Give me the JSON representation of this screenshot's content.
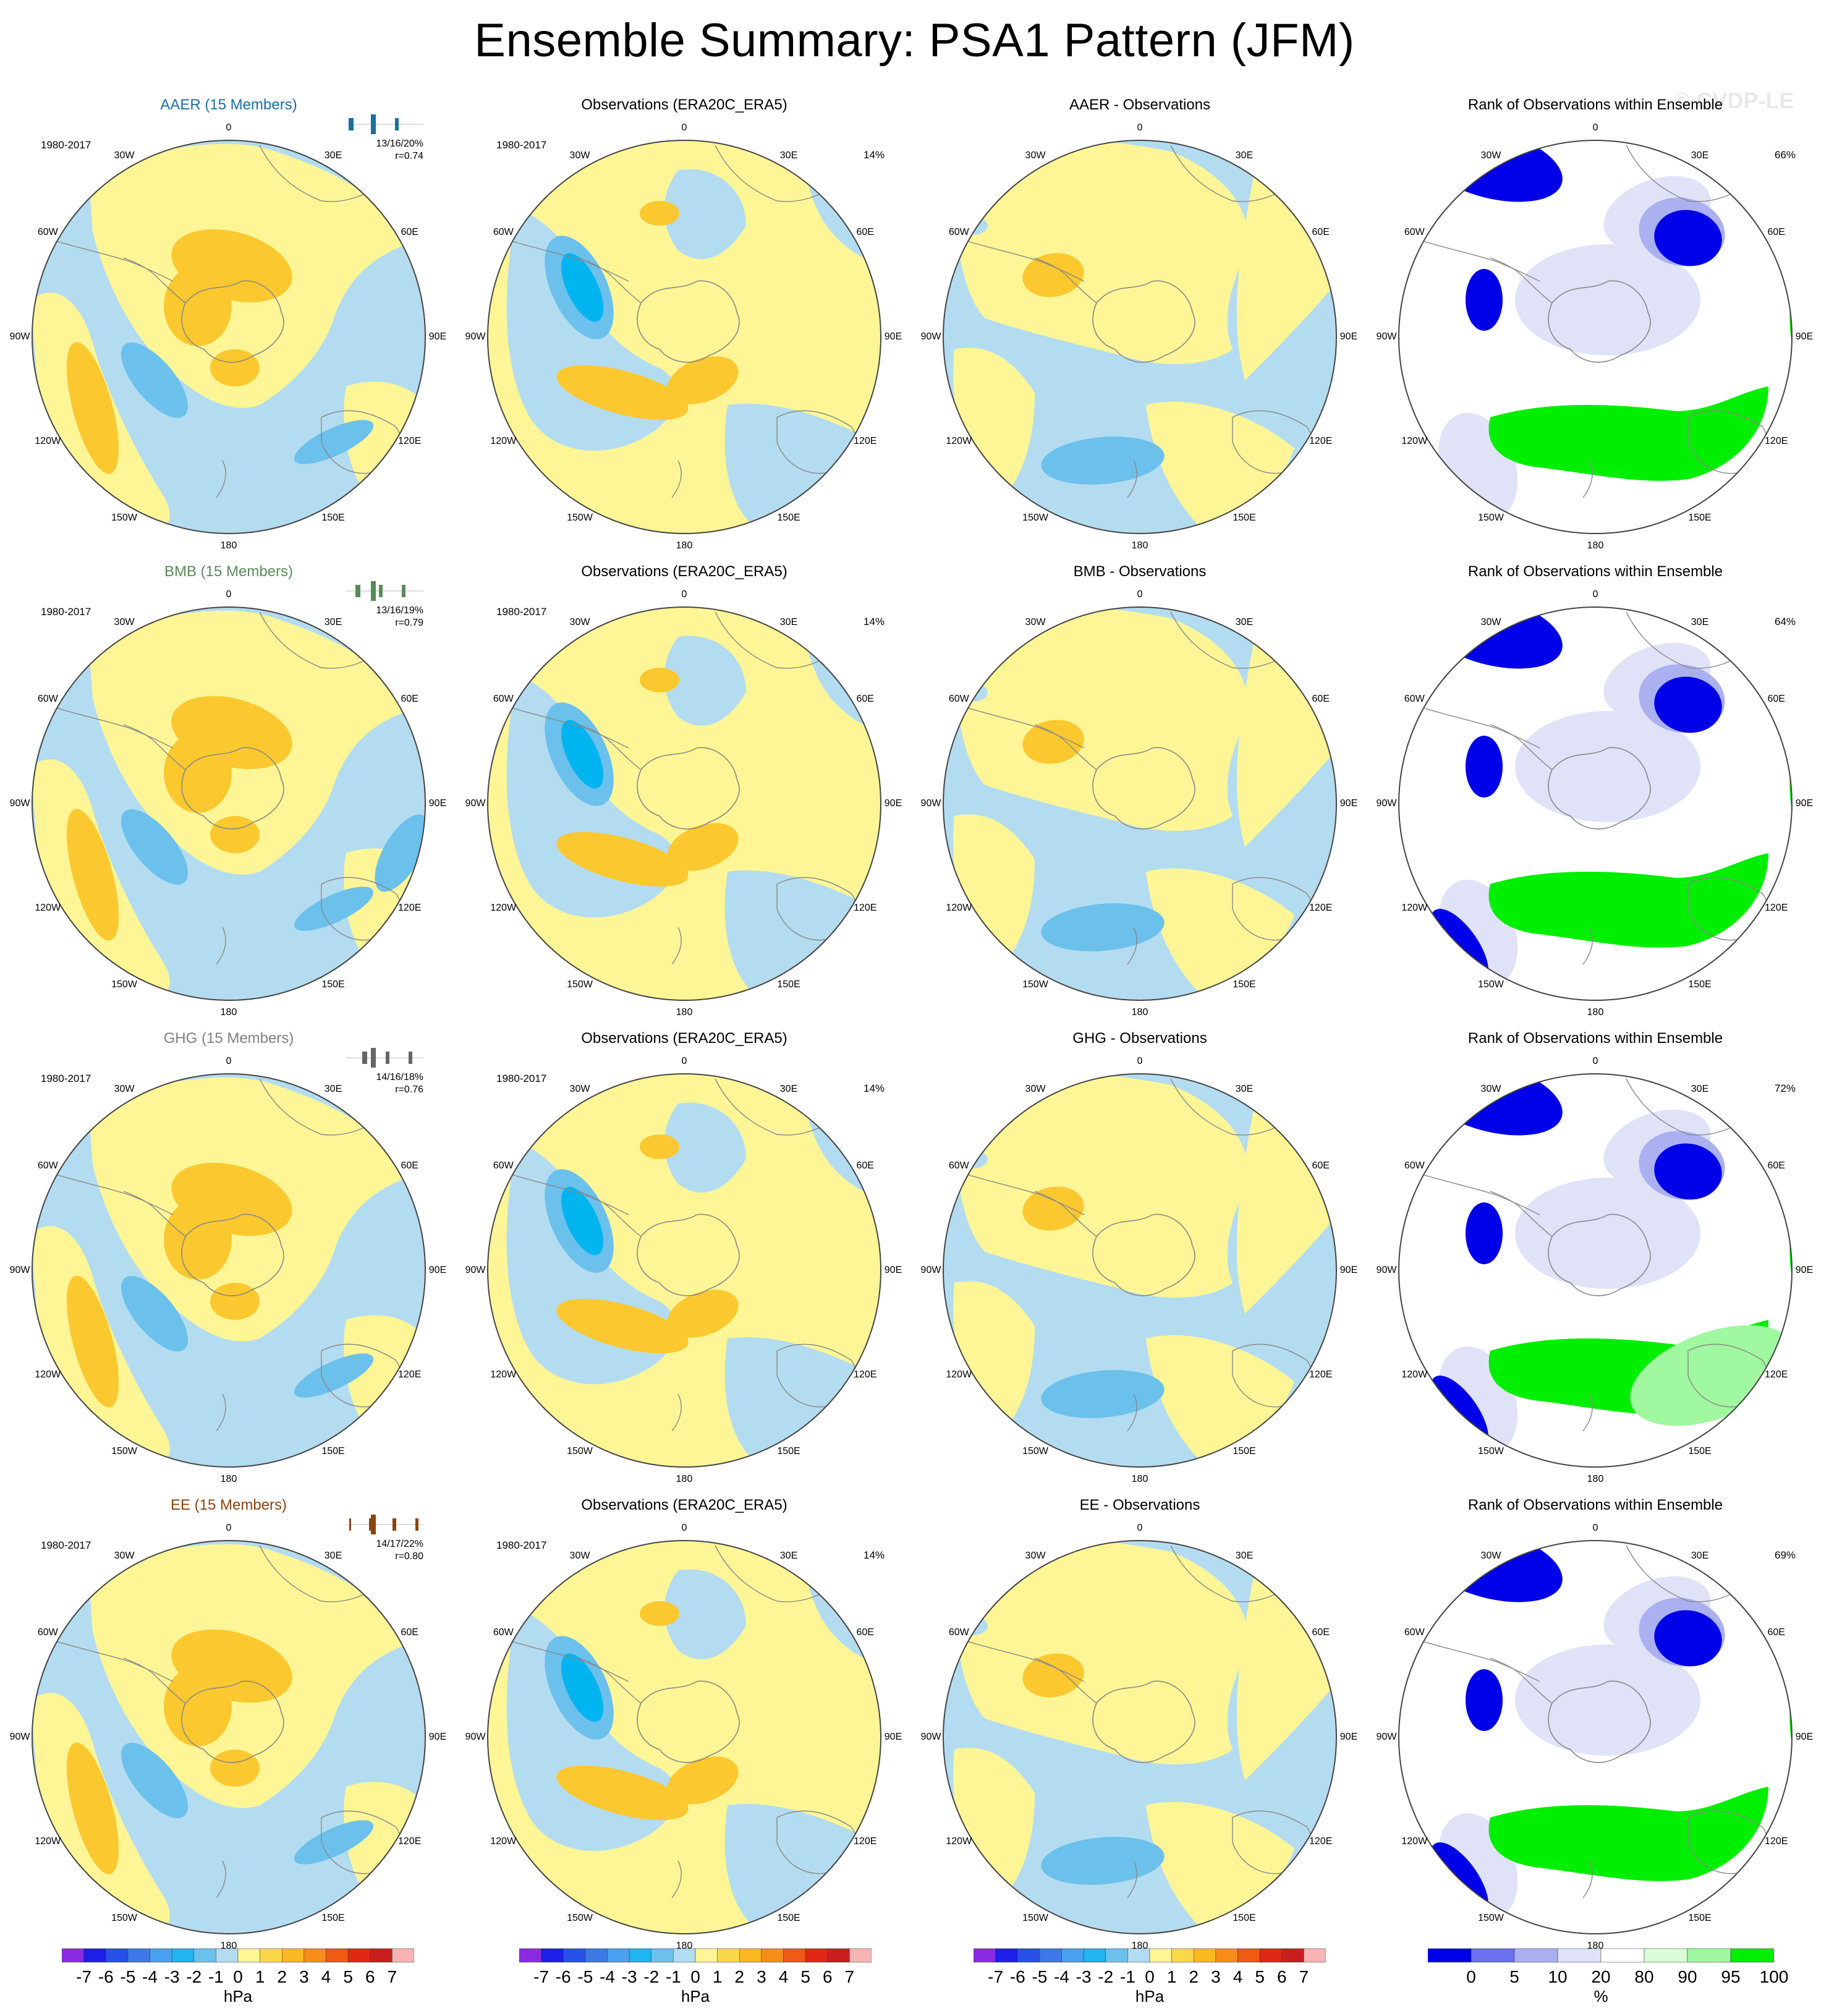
{
  "figure_title": "Ensemble Summary: PSA1 Pattern (JFM)",
  "watermark": "© CVDP-LE",
  "lon_labels": {
    "top": "0",
    "r30": "30E",
    "r60": "60E",
    "r90": "90E",
    "r120": "120E",
    "r150": "150E",
    "bottom": "180",
    "l150": "150W",
    "l120": "120W",
    "l90": "90W",
    "l60": "60W",
    "l30": "30W"
  },
  "colors": {
    "light_blue": "#b4dcf0",
    "mid_blue": "#6cc0ec",
    "deep_cyan": "#00b4f0",
    "light_yellow": "#fef696",
    "orange_yellow": "#fcc830",
    "rank_blue": "#0000e8",
    "rank_lavender": "#aab0f0",
    "rank_pale": "#e0e2f8",
    "rank_green": "#00ee00",
    "rank_lightgreen": "#a0f8a0",
    "rank_palegreen": "#d8fcd8",
    "coast": "#888888"
  },
  "rows": [
    {
      "ensemble": {
        "title": "AAER (15 Members)",
        "title_color": "#1a6fa0",
        "period": "1980-2017",
        "stats_line1": "13/16/20%",
        "stats_line2": "r=0.74",
        "spark_color": "#1a6fa0"
      },
      "obs": {
        "title": "Observations (ERA20C_ERA5)",
        "period": "1980-2017",
        "pct": "14%"
      },
      "diff": {
        "title": "AAER - Observations"
      },
      "rank": {
        "title": "Rank of Observations within Ensemble",
        "pct": "66%"
      }
    },
    {
      "ensemble": {
        "title": "BMB (15 Members)",
        "title_color": "#5a8a5a",
        "period": "1980-2017",
        "stats_line1": "13/16/19%",
        "stats_line2": "r=0.79",
        "spark_color": "#5a8a5a"
      },
      "obs": {
        "title": "Observations (ERA20C_ERA5)",
        "period": "1980-2017",
        "pct": "14%"
      },
      "diff": {
        "title": "BMB - Observations"
      },
      "rank": {
        "title": "Rank of Observations within Ensemble",
        "pct": "64%"
      }
    },
    {
      "ensemble": {
        "title": "GHG (15 Members)",
        "title_color": "#808080",
        "period": "1980-2017",
        "stats_line1": "14/16/18%",
        "stats_line2": "r=0.76",
        "spark_color": "#666666"
      },
      "obs": {
        "title": "Observations (ERA20C_ERA5)",
        "period": "1980-2017",
        "pct": "14%"
      },
      "diff": {
        "title": "GHG - Observations"
      },
      "rank": {
        "title": "Rank of Observations within Ensemble",
        "pct": "72%"
      }
    },
    {
      "ensemble": {
        "title": "EE (15 Members)",
        "title_color": "#8b4513",
        "period": "1980-2017",
        "stats_line1": "14/17/22%",
        "stats_line2": "r=0.80",
        "spark_color": "#8b4513"
      },
      "obs": {
        "title": "Observations (ERA20C_ERA5)",
        "period": "1980-2017",
        "pct": "14%"
      },
      "diff": {
        "title": "EE - Observations"
      },
      "rank": {
        "title": "Rank of Observations within Ensemble",
        "pct": "69%"
      }
    }
  ],
  "colorbars": {
    "hpa": {
      "ticks": [
        "-7",
        "-6",
        "-5",
        "-4",
        "-3",
        "-2",
        "-1",
        "0",
        "1",
        "2",
        "3",
        "4",
        "5",
        "6",
        "7"
      ],
      "unit": "hPa",
      "colors": [
        "#8a2be2",
        "#1e1ee6",
        "#2850e8",
        "#3c78e6",
        "#4aa0f0",
        "#20b4f0",
        "#6cc0ec",
        "#b4dcf0",
        "#fef696",
        "#fcd848",
        "#fcb820",
        "#f88c18",
        "#f05a14",
        "#e02814",
        "#c81e1e",
        "#f8b4b4"
      ]
    },
    "rank": {
      "ticks": [
        "0",
        "5",
        "10",
        "20",
        "80",
        "90",
        "95",
        "100"
      ],
      "unit": "%",
      "colors": [
        "#0000e8",
        "#6a70f0",
        "#aab0f0",
        "#e0e2f8",
        "#ffffff",
        "#d8fcd8",
        "#a0f8a0",
        "#00ee00"
      ]
    }
  }
}
